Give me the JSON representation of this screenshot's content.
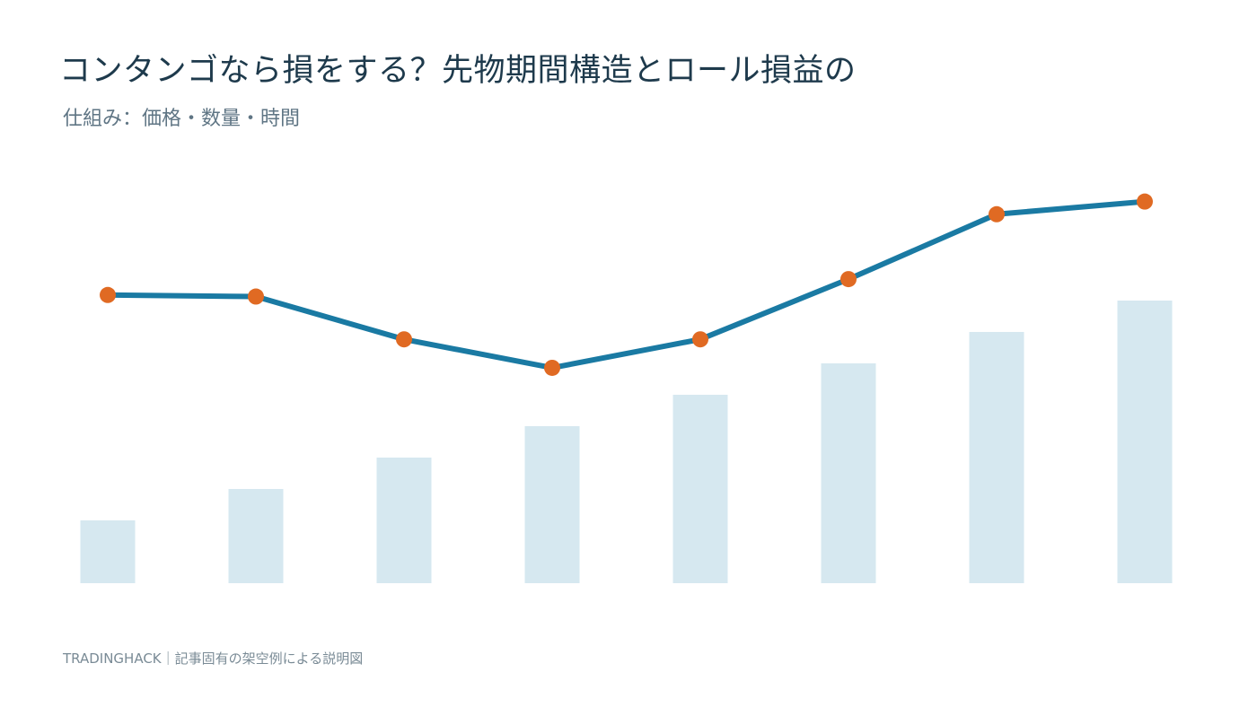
{
  "header": {
    "title": "コンタンゴなら損をする？先物期間構造とロール損益の",
    "subtitle": "仕組み：価格・数量・時間"
  },
  "footer": {
    "text": "TRADINGHACK｜記事固有の架空例による説明図"
  },
  "colors": {
    "bar": "#d6e8f0",
    "line": "#1a7aa3",
    "marker": "#e06a23",
    "title": "#1e3a4c"
  },
  "chart_data": {
    "type": "bar+line",
    "categories": [
      "",
      "",
      "",
      "",
      "",
      "",
      "",
      ""
    ],
    "bars": {
      "values": [
        2,
        3,
        4,
        5,
        6,
        7,
        8,
        9
      ],
      "ylim": [
        0,
        10
      ]
    },
    "line": {
      "values": [
        9.1,
        9.05,
        7.7,
        6.8,
        7.7,
        9.6,
        11.65,
        12.05
      ],
      "ylim": [
        0,
        18
      ]
    },
    "grid": false,
    "legend": "none"
  }
}
